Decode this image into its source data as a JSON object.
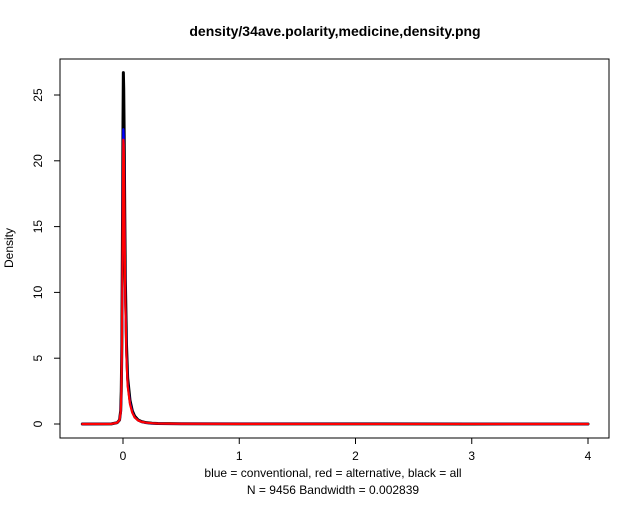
{
  "chart_data": {
    "type": "line",
    "title": "density/34ave.polarity,medicine,density.png",
    "xlabel_line1": "blue = conventional, red = alternative, black = all",
    "xlabel_line2": "N = 9456   Bandwidth = 0.002839",
    "ylabel": "Density",
    "xlim": [
      -0.37,
      4.0
    ],
    "ylim": [
      0,
      27
    ],
    "x_ticks": [
      0,
      1,
      2,
      3,
      4
    ],
    "x_tick_labels": [
      "0",
      "1",
      "2",
      "3",
      "4"
    ],
    "y_ticks": [
      0,
      5,
      10,
      15,
      20,
      25
    ],
    "y_tick_labels": [
      "0",
      "5",
      "10",
      "15",
      "20",
      "25"
    ],
    "series": [
      {
        "name": "all",
        "color": "#000000",
        "x": [
          -0.35,
          -0.1,
          -0.05,
          -0.03,
          -0.02,
          -0.015,
          -0.01,
          -0.005,
          0.0,
          0.003,
          0.006,
          0.01,
          0.015,
          0.02,
          0.03,
          0.04,
          0.06,
          0.08,
          0.1,
          0.13,
          0.16,
          0.2,
          0.25,
          0.3,
          0.4,
          0.5,
          1.0,
          2.0,
          3.0,
          4.0
        ],
        "y": [
          0,
          0.01,
          0.1,
          0.3,
          1.0,
          2.5,
          6.0,
          14.0,
          23.0,
          26.7,
          25.5,
          22.0,
          16.0,
          11.0,
          6.0,
          3.5,
          1.8,
          1.0,
          0.6,
          0.3,
          0.18,
          0.1,
          0.06,
          0.04,
          0.03,
          0.02,
          0.01,
          0.005,
          0.003,
          0
        ]
      },
      {
        "name": "conventional",
        "color": "#0000ff",
        "x": [
          -0.35,
          -0.1,
          -0.05,
          -0.03,
          -0.02,
          -0.015,
          -0.01,
          -0.005,
          0.0,
          0.003,
          0.006,
          0.01,
          0.015,
          0.02,
          0.03,
          0.04,
          0.06,
          0.08,
          0.1,
          0.13,
          0.16,
          0.2,
          0.25,
          0.3,
          0.4,
          0.5,
          1.0,
          2.0,
          3.0,
          4.0
        ],
        "y": [
          0,
          0.01,
          0.1,
          0.3,
          0.9,
          2.2,
          5.5,
          12.0,
          19.5,
          22.4,
          21.8,
          19.0,
          14.0,
          9.5,
          5.2,
          3.0,
          1.6,
          0.9,
          0.5,
          0.28,
          0.16,
          0.09,
          0.05,
          0.04,
          0.03,
          0.02,
          0.01,
          0.005,
          0.003,
          0
        ]
      },
      {
        "name": "alternative",
        "color": "#ff0000",
        "x": [
          -0.35,
          -0.1,
          -0.05,
          -0.03,
          -0.02,
          -0.015,
          -0.01,
          -0.005,
          0.0,
          0.003,
          0.006,
          0.01,
          0.015,
          0.02,
          0.03,
          0.04,
          0.06,
          0.08,
          0.1,
          0.13,
          0.16,
          0.2,
          0.25,
          0.3,
          0.4,
          0.5,
          1.0,
          2.0,
          3.0,
          4.0
        ],
        "y": [
          0,
          0.01,
          0.1,
          0.3,
          0.9,
          2.2,
          5.3,
          11.5,
          18.5,
          21.6,
          21.2,
          18.5,
          13.5,
          9.2,
          5.0,
          2.9,
          1.5,
          0.85,
          0.5,
          0.27,
          0.16,
          0.1,
          0.06,
          0.04,
          0.03,
          0.02,
          0.01,
          0.005,
          0.003,
          0
        ]
      }
    ]
  }
}
